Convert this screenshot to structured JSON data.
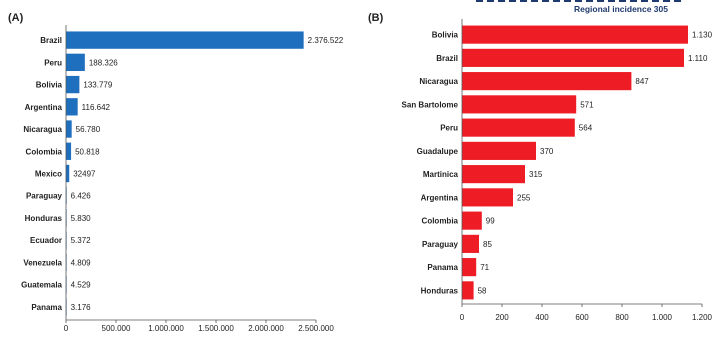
{
  "chart_data": [
    {
      "type": "bar",
      "orientation": "horizontal",
      "panel_label": "(A)",
      "categories": [
        "Brazil",
        "Peru",
        "Bolivia",
        "Argentina",
        "Nicaragua",
        "Colombia",
        "Mexico",
        "Paraguay",
        "Honduras",
        "Ecuador",
        "Venezuela",
        "Guatemala",
        "Panama"
      ],
      "values": [
        2376522,
        188326,
        133779,
        116642,
        56780,
        50818,
        32497,
        6426,
        5830,
        5372,
        4809,
        4529,
        3176
      ],
      "value_labels": [
        "2.376.522",
        "188.326",
        "133.779",
        "116.642",
        "56.780",
        "50.818",
        "32497",
        "6.426",
        "5.830",
        "5.372",
        "4.809",
        "4.529",
        "3.176"
      ],
      "xlim": [
        0,
        2500000
      ],
      "x_ticks": [
        0,
        500000,
        1000000,
        1500000,
        2000000,
        2500000
      ],
      "x_tick_labels": [
        "0",
        "500.000",
        "1.000.000",
        "1.500.000",
        "2.000.000",
        "2.500.000"
      ],
      "bar_color": "#1f6fbf",
      "grid": false
    },
    {
      "type": "bar",
      "orientation": "horizontal",
      "panel_label": "(B)",
      "categories": [
        "Bolivia",
        "Brazil",
        "Nicaragua",
        "San Bartolome",
        "Peru",
        "Guadalupe",
        "Martinica",
        "Argentina",
        "Colombia",
        "Paraguay",
        "Panama",
        "Honduras"
      ],
      "values": [
        1130,
        1110,
        847,
        571,
        564,
        370,
        315,
        255,
        99,
        85,
        71,
        58
      ],
      "value_labels": [
        "1.130",
        "1.110",
        "847",
        "571",
        "564",
        "370",
        "315",
        "255",
        "99",
        "85",
        "71",
        "58"
      ],
      "xlim": [
        0,
        1200
      ],
      "x_ticks": [
        0,
        200,
        400,
        600,
        800,
        1000,
        1200
      ],
      "x_tick_labels": [
        "0",
        "200",
        "400",
        "600",
        "800",
        "1.000",
        "1.200"
      ],
      "bar_color": "#ee1c24",
      "grid": false,
      "reference_line": {
        "value": 305,
        "label": "Regional incidence 305",
        "color": "#1f3a6e"
      }
    }
  ]
}
